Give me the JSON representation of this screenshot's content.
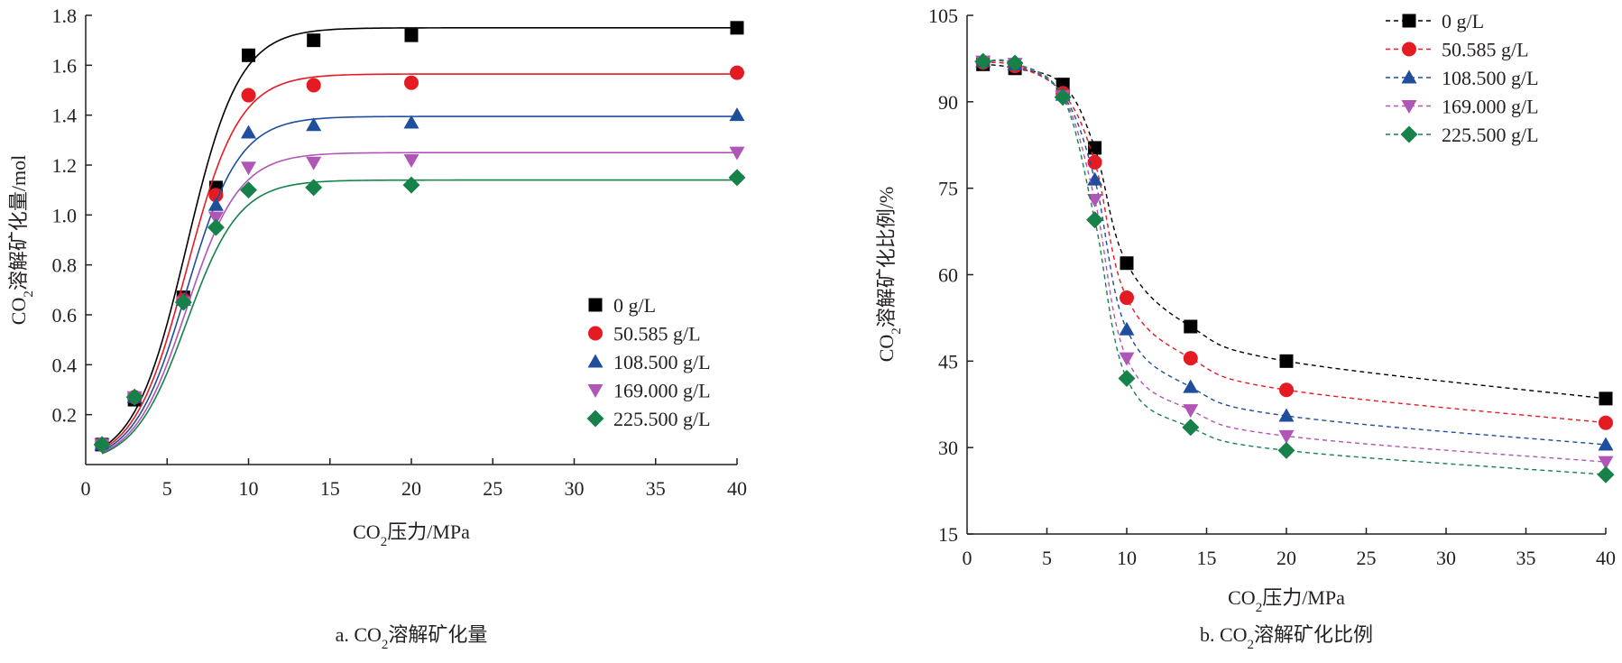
{
  "colors": {
    "series": [
      "#000000",
      "#e41b23",
      "#1f4e9d",
      "#b056b6",
      "#16824a"
    ],
    "axis": "#231f20"
  },
  "markers": [
    "square",
    "circle",
    "triangle-up",
    "triangle-down",
    "diamond"
  ],
  "chart_data": [
    {
      "type": "scatter",
      "caption": "a. CO₂溶解矿化量",
      "xlabel": "CO₂压力/MPa",
      "ylabel": "CO₂溶解矿化量/mol",
      "xlim": [
        0,
        40
      ],
      "ylim": [
        0,
        1.8
      ],
      "xticks": [
        0,
        5,
        10,
        15,
        20,
        25,
        30,
        35,
        40
      ],
      "yticks": [
        0.2,
        0.4,
        0.6,
        0.8,
        1.0,
        1.2,
        1.4,
        1.6,
        1.8
      ],
      "ytick_labels": [
        "0.2",
        "0.4",
        "0.6",
        "0.8",
        "1.0",
        "1.2",
        "1.4",
        "1.6",
        "1.8"
      ],
      "grid": false,
      "legend_position": "center-right",
      "fit_curves": "solid sigmoid fit per series",
      "x": [
        1,
        3,
        6,
        8,
        10,
        14,
        20,
        40
      ],
      "series": [
        {
          "name": "0 g/L",
          "values": [
            0.08,
            0.26,
            0.67,
            1.11,
            1.64,
            1.7,
            1.72,
            1.75
          ],
          "plateau": 1.75
        },
        {
          "name": "50.585 g/L",
          "values": [
            0.08,
            0.27,
            0.66,
            1.08,
            1.48,
            1.52,
            1.53,
            1.57
          ],
          "plateau": 1.565
        },
        {
          "name": "108.500 g/L",
          "values": [
            0.08,
            0.27,
            0.66,
            1.04,
            1.33,
            1.36,
            1.37,
            1.4
          ],
          "plateau": 1.395
        },
        {
          "name": "169.000 g/L",
          "values": [
            0.08,
            0.27,
            0.65,
            0.99,
            1.19,
            1.21,
            1.22,
            1.25
          ],
          "plateau": 1.25
        },
        {
          "name": "225.500 g/L",
          "values": [
            0.08,
            0.27,
            0.65,
            0.95,
            1.1,
            1.11,
            1.12,
            1.15
          ],
          "plateau": 1.14
        }
      ]
    },
    {
      "type": "line",
      "caption": "b. CO₂溶解矿化比例",
      "xlabel": "CO₂压力/MPa",
      "ylabel": "CO₂溶解矿化比例/%",
      "xlim": [
        0,
        40
      ],
      "ylim": [
        15,
        105
      ],
      "xticks": [
        0,
        5,
        10,
        15,
        20,
        25,
        30,
        35,
        40
      ],
      "yticks": [
        15,
        30,
        45,
        60,
        75,
        90,
        105
      ],
      "ytick_labels": [
        "15",
        "30",
        "45",
        "60",
        "75",
        "90",
        "105"
      ],
      "grid": false,
      "legend_position": "top-right",
      "line_style": "dashed smooth",
      "x": [
        1,
        3,
        6,
        8,
        10,
        14,
        20,
        40
      ],
      "series": [
        {
          "name": "0 g/L",
          "values": [
            96.5,
            95.8,
            93.0,
            82.0,
            62.0,
            51.0,
            45.0,
            38.5
          ]
        },
        {
          "name": "50.585 g/L",
          "values": [
            96.8,
            96.2,
            91.5,
            79.5,
            56.0,
            45.5,
            40.0,
            34.3
          ]
        },
        {
          "name": "108.500 g/L",
          "values": [
            97.0,
            96.5,
            91.2,
            76.5,
            50.5,
            40.5,
            35.5,
            30.5
          ]
        },
        {
          "name": "169.000 g/L",
          "values": [
            97.0,
            96.6,
            91.0,
            73.0,
            45.5,
            36.5,
            32.0,
            27.5
          ]
        },
        {
          "name": "225.500 g/L",
          "values": [
            97.0,
            96.7,
            90.8,
            69.5,
            42.0,
            33.5,
            29.5,
            25.3
          ]
        }
      ]
    }
  ]
}
